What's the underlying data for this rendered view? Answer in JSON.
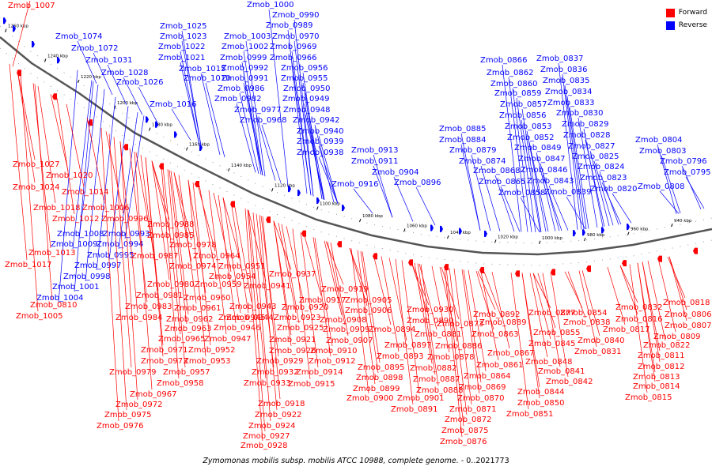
{
  "legend": {
    "forward": {
      "label": "Forward",
      "color": "#ff0000"
    },
    "reverse": {
      "label": "Reverse",
      "color": "#0000ff"
    }
  },
  "caption": {
    "organism": "Zymomonas mobilis subsp. mobilis ATCC 10988, complete genome.",
    "range": " - 0..2021773"
  },
  "ticks": [
    "1260 kbp",
    "1240 kbp",
    "1220 kbp",
    "1200 kbp",
    "1180 kbp",
    "1160 kbp",
    "1140 kbp",
    "1120 kbp",
    "1100 kbp",
    "1080 kbp",
    "1060 kbp",
    "1040 kbp",
    "1020 kbp",
    "1000 kbp",
    "980 kbp",
    "960 kbp",
    "940 kbp"
  ],
  "reverse_genes": [
    "Zmob_1074",
    "Zmob_1072",
    "Zmob_1031",
    "Zmob_1028",
    "Zmob_1026",
    "Zmob_1025",
    "Zmob_1023",
    "Zmob_1022",
    "Zmob_1021",
    "Zmob_1016",
    "Zmob_1015",
    "Zmob_1010",
    "Zmob_1000",
    "Zmob_0990",
    "Zmob_0989",
    "Zmob_1003",
    "Zmob_0970",
    "Zmob_1002",
    "Zmob_0969",
    "Zmob_0999",
    "Zmob_0966",
    "Zmob_0992",
    "Zmob_0956",
    "Zmob_0991",
    "Zmob_0955",
    "Zmob_0986",
    "Zmob_0950",
    "Zmob_0982",
    "Zmob_0949",
    "Zmob_0977",
    "Zmob_0948",
    "Zmob_0968",
    "Zmob_0942",
    "Zmob_0940",
    "Zmob_0939",
    "Zmob_0938",
    "Zmob_0913",
    "Zmob_0911",
    "Zmob_0904",
    "Zmob_0916",
    "Zmob_0896",
    "Zmob_0885",
    "Zmob_0884",
    "Zmob_0879",
    "Zmob_0874",
    "Zmob_0868",
    "Zmob_0865",
    "Zmob_0858",
    "Zmob_0866",
    "Zmob_0862",
    "Zmob_0860",
    "Zmob_0859",
    "Zmob_0857",
    "Zmob_0856",
    "Zmob_0853",
    "Zmob_0852",
    "Zmob_0849",
    "Zmob_0847",
    "Zmob_0846",
    "Zmob_0843",
    "Zmob_0839",
    "Zmob_0837",
    "Zmob_0836",
    "Zmob_0835",
    "Zmob_0834",
    "Zmob_0833",
    "Zmob_0830",
    "Zmob_0829",
    "Zmob_0828",
    "Zmob_0827",
    "Zmob_0825",
    "Zmob_0824",
    "Zmob_0823",
    "Zmob_0820",
    "Zmob_0804",
    "Zmob_0803",
    "Zmob_0796",
    "Zmob_0795",
    "Zmob_0808",
    "Zmob_1008",
    "Zmob_0993",
    "Zmob_1009",
    "Zmob_0994",
    "Zmob_0995",
    "Zmob_0997",
    "Zmob_0998",
    "Zmob_1001",
    "Zmob_1004"
  ],
  "forward_genes": [
    "Zmob_1027",
    "Zmob_1020",
    "Zmob_1024",
    "Zmob_1014",
    "Zmob_1018",
    "Zmob_1006",
    "Zmob_1012",
    "Zmob_0996",
    "Zmob_0988",
    "Zmob_0985",
    "Zmob_0978",
    "Zmob_1013",
    "Zmob_0987",
    "Zmob_1017",
    "Zmob_0964",
    "Zmob_0974",
    "Zmob_0951",
    "Zmob_0954",
    "Zmob_0937",
    "Zmob_0980",
    "Zmob_0959",
    "Zmob_0941",
    "Zmob_0981",
    "Zmob_0960",
    "Zmob_0943",
    "Zmob_0983",
    "Zmob_0961",
    "Zmob_0944",
    "Zmob_0984",
    "Zmob_0962",
    "Zmob_0945",
    "Zmob_0963",
    "Zmob_0946",
    "Zmob_0965",
    "Zmob_0947",
    "Zmob_0971",
    "Zmob_0952",
    "Zmob_0973",
    "Zmob_0953",
    "Zmob_0979",
    "Zmob_0957",
    "Zmob_0958",
    "Zmob_0967",
    "Zmob_0972",
    "Zmob_0975",
    "Zmob_0976",
    "Zmob_0919",
    "Zmob_0917",
    "Zmob_0905",
    "Zmob_0920",
    "Zmob_0906",
    "Zmob_0923",
    "Zmob_0908",
    "Zmob_0925",
    "Zmob_0909",
    "Zmob_0921",
    "Zmob_0907",
    "Zmob_0926",
    "Zmob_0910",
    "Zmob_0929",
    "Zmob_0912",
    "Zmob_0932",
    "Zmob_0914",
    "Zmob_0933",
    "Zmob_0915",
    "Zmob_0918",
    "Zmob_0922",
    "Zmob_0924",
    "Zmob_0927",
    "Zmob_0928",
    "Zmob_0930",
    "Zmob_0890",
    "Zmob_0894",
    "Zmob_0897",
    "Zmob_0893",
    "Zmob_0895",
    "Zmob_0898",
    "Zmob_0899",
    "Zmob_0900",
    "Zmob_0901",
    "Zmob_0891",
    "Zmob_0892",
    "Zmob_0873",
    "Zmob_0881",
    "Zmob_0886",
    "Zmob_0878",
    "Zmob_0882",
    "Zmob_0887",
    "Zmob_0888",
    "Zmob_0889",
    "Zmob_0863",
    "Zmob_0867",
    "Zmob_0861",
    "Zmob_0864",
    "Zmob_0869",
    "Zmob_0870",
    "Zmob_0871",
    "Zmob_0872",
    "Zmob_0875",
    "Zmob_0876",
    "Zmob_0877",
    "Zmob_0855",
    "Zmob_0845",
    "Zmob_0848",
    "Zmob_0841",
    "Zmob_0842",
    "Zmob_0844",
    "Zmob_0850",
    "Zmob_0851",
    "Zmob_0854",
    "Zmob_0838",
    "Zmob_0840",
    "Zmob_0831",
    "Zmob_0832",
    "Zmob_0816",
    "Zmob_0817",
    "Zmob_0822",
    "Zmob_0811",
    "Zmob_0812",
    "Zmob_0813",
    "Zmob_0814",
    "Zmob_0815",
    "Zmob_0818",
    "Zmob_0806",
    "Zmob_0807",
    "Zmob_0809",
    "Zmob_0810",
    "Zmob_1005",
    "Zmob_1007"
  ]
}
